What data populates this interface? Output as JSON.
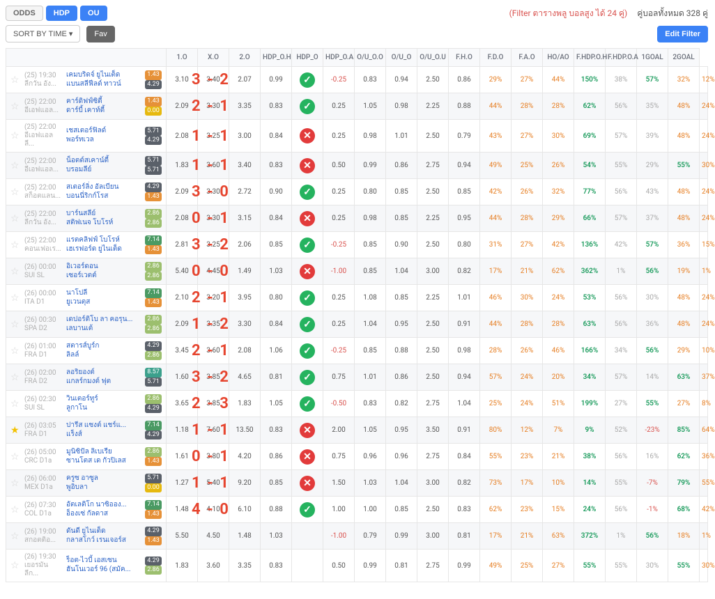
{
  "colors": {
    "blue": "#3b82f6",
    "gray": "#666",
    "badge_palette": {
      "blk": "#5a6069",
      "org": "#e69138",
      "yel": "#e6b90f",
      "grnL": "#9cbf6e",
      "grn": "#5fa05f",
      "grnD": "#4a9a63",
      "teal": "#3ba08c"
    }
  },
  "top": {
    "odds": "ODDS",
    "hdp": "HDP",
    "ou": "OU",
    "filter_red": "(Filter ตารางพลู บอลสูง ได้ 24 คู่)",
    "pairs_total": "คู่บอลทั้งหมด 328 คู่"
  },
  "bar2": {
    "sort": "SORT BY TIME ▾",
    "fav": "Fav",
    "edit": "Edit Filter"
  },
  "cols": [
    "1.O",
    "X.O",
    "2.O",
    "HDP_O.H",
    "HDP_O",
    "HDP_O.A",
    "O/U_O.O",
    "O/U_O",
    "O/U_O.U",
    "F.H.O",
    "F.D.O",
    "F.A.O",
    "HO/AO",
    "F.HDP.O.H",
    "F.HDP.O.A",
    "1GOAL",
    "2GOAL"
  ],
  "rows": [
    {
      "time": "(25) 19:30",
      "league": "ลีกวัน อัง...",
      "home": "เคมบริดจ์ ยูไนเต็ด",
      "away": "แบนสลีฟีลด์ ทาวน์",
      "bh": "1.43",
      "bhc": "org",
      "ba": "4.29",
      "bac": "blk",
      "score": "3 - 2",
      "v": [
        "3.10",
        "3.40",
        "2.07",
        "0.99",
        "✓",
        "-0.25",
        "0.83",
        "0.94",
        "2.50",
        "0.86",
        "29%",
        "27%",
        "44%",
        "150%",
        "38%",
        "57%",
        "32%",
        "12%"
      ]
    },
    {
      "time": "(25) 22:00",
      "league": "อีเอฟแอล...",
      "home": "คาร์ดิฟฟ์ซิตี้",
      "away": "ดาร์บี้ เคาท์ตี้",
      "bh": "1.43",
      "bhc": "org",
      "ba": "0.00",
      "bac": "yel",
      "score": "2 - 1",
      "v": [
        "2.09",
        "3.30",
        "3.35",
        "0.83",
        "✓",
        "0.25",
        "1.05",
        "0.98",
        "2.25",
        "0.88",
        "44%",
        "28%",
        "28%",
        "62%",
        "56%",
        "35%",
        "48%",
        "24%"
      ]
    },
    {
      "time": "(25) 22:00",
      "league": "อีเอฟแอลลี...",
      "home": "เชสเตอร์ฟิลด์",
      "away": "พอร์ทเวล",
      "bh": "5.71",
      "bhc": "blk",
      "ba": "4.29",
      "bac": "blk",
      "score": "1 - 1",
      "v": [
        "2.08",
        "3.25",
        "3.00",
        "0.84",
        "✗",
        "0.25",
        "0.98",
        "1.01",
        "2.50",
        "0.79",
        "43%",
        "27%",
        "30%",
        "69%",
        "57%",
        "39%",
        "48%",
        "24%"
      ]
    },
    {
      "time": "(25) 22:00",
      "league": "อีเอฟแอล...",
      "home": "น็อตต์สเคาน์ตี้",
      "away": "บรอมลีย์",
      "bh": "5.71",
      "bhc": "blk",
      "ba": "5.71",
      "bac": "blk",
      "score": "1 - 1",
      "v": [
        "1.83",
        "3.60",
        "3.40",
        "0.83",
        "✗",
        "0.50",
        "0.99",
        "0.86",
        "2.75",
        "0.94",
        "49%",
        "25%",
        "26%",
        "54%",
        "55%",
        "29%",
        "55%",
        "30%"
      ]
    },
    {
      "time": "(25) 22:00",
      "league": "สก็อตแลน...",
      "home": "สเตอร์ลิ่ง อัลเบียน",
      "away": "บอนนี่ริกก์โรส",
      "bh": "4.29",
      "bhc": "blk",
      "ba": "1.43",
      "bac": "org",
      "score": "3 - 0",
      "v": [
        "2.09",
        "3.30",
        "2.72",
        "0.90",
        "✓",
        "0.25",
        "0.80",
        "0.85",
        "2.50",
        "0.85",
        "42%",
        "26%",
        "32%",
        "77%",
        "56%",
        "43%",
        "48%",
        "24%"
      ]
    },
    {
      "time": "(25) 22:00",
      "league": "ลีกวัน อัง...",
      "home": "บาร์นสลีย์",
      "away": "สติฟเนจ โบโรห์",
      "bh": "2.86",
      "bhc": "grnL",
      "ba": "2.86",
      "bac": "grnL",
      "score": "0 - 1",
      "v": [
        "2.08",
        "3.30",
        "3.15",
        "0.84",
        "✗",
        "0.25",
        "0.98",
        "0.85",
        "2.25",
        "0.95",
        "44%",
        "28%",
        "29%",
        "66%",
        "57%",
        "37%",
        "48%",
        "24%"
      ]
    },
    {
      "time": "(25) 22:00",
      "league": "คอนเฟอเร...",
      "home": "แรตคลิฟฟ์ โบโรห์",
      "away": "เฮเรฟอร์ด ยูไนเต็ด",
      "bh": "7.14",
      "bhc": "grnD",
      "ba": "1.43",
      "bac": "org",
      "score": "3 - 2",
      "v": [
        "2.81",
        "3.25",
        "2.06",
        "0.85",
        "✓",
        "-0.25",
        "0.85",
        "0.90",
        "2.50",
        "0.80",
        "31%",
        "27%",
        "42%",
        "136%",
        "42%",
        "57%",
        "36%",
        "15%"
      ]
    },
    {
      "time": "(26) 00:00",
      "league": "SUI SL",
      "home": "อิเวอร์ดอน",
      "away": "เซอร์เวตต์",
      "bh": "2.86",
      "bhc": "grnL",
      "ba": "2.86",
      "bac": "grnL",
      "score": "0 - 0",
      "v": [
        "5.40",
        "4.45",
        "1.49",
        "1.03",
        "✗",
        "-1.00",
        "0.85",
        "1.04",
        "3.00",
        "0.82",
        "17%",
        "21%",
        "62%",
        "362%",
        "1%",
        "56%",
        "19%",
        "1%"
      ]
    },
    {
      "time": "(26) 00:00",
      "league": "ITA D1",
      "home": "นาโปลี",
      "away": "ยูเวนตุส",
      "bh": "7.14",
      "bhc": "grnD",
      "ba": "1.43",
      "bac": "org",
      "score": "2 - 1",
      "v": [
        "2.10",
        "3.20",
        "3.95",
        "0.80",
        "✓",
        "0.25",
        "1.08",
        "0.85",
        "2.25",
        "1.01",
        "46%",
        "30%",
        "24%",
        "53%",
        "56%",
        "30%",
        "48%",
        "24%"
      ]
    },
    {
      "time": "(26) 00:30",
      "league": "SPA D2",
      "home": "เดปอร์ติโบ ลา คอรุน...",
      "away": "เลบานเต้",
      "bh": "2.86",
      "bhc": "grnL",
      "ba": "2.86",
      "bac": "grnL",
      "score": "1 - 2",
      "v": [
        "2.09",
        "3.35",
        "3.30",
        "0.84",
        "✓",
        "0.25",
        "1.04",
        "0.95",
        "2.50",
        "0.91",
        "44%",
        "28%",
        "28%",
        "63%",
        "56%",
        "36%",
        "48%",
        "24%"
      ]
    },
    {
      "time": "(26) 01:00",
      "league": "FRA D1",
      "home": "สตารส์บูร์ก",
      "away": "ลิลล์",
      "bh": "4.29",
      "bhc": "blk",
      "ba": "2.86",
      "bac": "grnL",
      "score": "2 - 1",
      "v": [
        "3.45",
        "3.60",
        "2.08",
        "1.06",
        "✓",
        "-0.25",
        "0.85",
        "0.88",
        "2.50",
        "0.98",
        "28%",
        "26%",
        "46%",
        "166%",
        "34%",
        "56%",
        "29%",
        "10%"
      ]
    },
    {
      "time": "(26) 02:00",
      "league": "FRA D2",
      "home": "ลอริยองต์",
      "away": "แกลร์กมงต์ ฟุต",
      "bh": "8.57",
      "bhc": "teal",
      "ba": "5.71",
      "bac": "blk",
      "score": "3 - 2",
      "v": [
        "1.60",
        "3.85",
        "4.65",
        "0.81",
        "✓",
        "0.75",
        "1.01",
        "0.86",
        "2.50",
        "0.94",
        "57%",
        "24%",
        "20%",
        "34%",
        "57%",
        "14%",
        "63%",
        "37%"
      ]
    },
    {
      "time": "(26) 02:30",
      "league": "SUI SL",
      "home": "วินเตอร์ทูร์",
      "away": "ลูกาโน",
      "bh": "2.86",
      "bhc": "grnL",
      "ba": "4.29",
      "bac": "blk",
      "score": "2 - 3",
      "v": [
        "3.65",
        "3.85",
        "1.83",
        "1.05",
        "✓",
        "-0.50",
        "0.83",
        "0.82",
        "2.75",
        "1.04",
        "25%",
        "24%",
        "51%",
        "199%",
        "27%",
        "55%",
        "27%",
        "8%"
      ]
    },
    {
      "time": "(26) 03:05",
      "league": "FRA D1",
      "home": "ปารีส แซงต์ แชร์แ...",
      "away": "แร็งส์",
      "bh": "7.14",
      "bhc": "grnD",
      "ba": "4.29",
      "bac": "blk",
      "score": "1 - 1",
      "v": [
        "1.18",
        "7.60",
        "13.50",
        "0.83",
        "✗",
        "2.00",
        "1.05",
        "0.95",
        "3.50",
        "0.91",
        "80%",
        "12%",
        "7%",
        "9%",
        "52%",
        "-23%",
        "85%",
        "64%"
      ],
      "star": true
    },
    {
      "time": "(26) 05:00",
      "league": "CRC D1a",
      "home": "มูนิซิปัล ลิเบเรีย",
      "away": "ซานโตส เด กัวปิเลส",
      "bh": "2.86",
      "bhc": "grnL",
      "ba": "1.43",
      "bac": "org",
      "score": "0 - 1",
      "v": [
        "1.61",
        "3.80",
        "4.20",
        "0.86",
        "✗",
        "0.75",
        "0.96",
        "0.96",
        "2.75",
        "0.84",
        "55%",
        "23%",
        "21%",
        "38%",
        "56%",
        "16%",
        "62%",
        "36%"
      ]
    },
    {
      "time": "(26) 06:00",
      "league": "MEX D1a",
      "home": "ครูซ อาซูล",
      "away": "พูอิบลา",
      "bh": "5.71",
      "bhc": "blk",
      "ba": "0.00",
      "bac": "yel",
      "score": "1 - 1",
      "v": [
        "1.27",
        "5.40",
        "9.20",
        "0.85",
        "✗",
        "1.50",
        "1.03",
        "1.04",
        "3.00",
        "0.82",
        "73%",
        "17%",
        "10%",
        "14%",
        "55%",
        "-7%",
        "79%",
        "55%"
      ]
    },
    {
      "time": "(26) 07:30",
      "league": "COL D1a",
      "home": "อัตเลติโก นาซิออง...",
      "away": "อ็องเซ่ กัลดาส",
      "bh": "7.14",
      "bhc": "grnD",
      "ba": "1.43",
      "bac": "org",
      "score": "4 - 0",
      "v": [
        "1.48",
        "4.10",
        "6.10",
        "0.88",
        "✓",
        "1.00",
        "1.00",
        "0.85",
        "2.50",
        "0.83",
        "62%",
        "23%",
        "15%",
        "24%",
        "56%",
        "-1%",
        "68%",
        "42%"
      ]
    },
    {
      "time": "(26) 19:00",
      "league": "สกอตติอ...",
      "home": "ดันดี ยูไนเต็ด",
      "away": "กลาสโกว์ เรนเจอร์ส",
      "bh": "4.29",
      "bhc": "blk",
      "ba": "1.43",
      "bac": "org",
      "score": "",
      "v": [
        "5.50",
        "4.50",
        "1.48",
        "1.03",
        "",
        "-1.00",
        "0.79",
        "0.99",
        "3.00",
        "0.81",
        "17%",
        "21%",
        "63%",
        "372%",
        "1%",
        "56%",
        "18%",
        "1%"
      ]
    },
    {
      "time": "(26) 19:30",
      "league": "เยอรมันลีก...",
      "home": "ร็อต-ไวบี้ เอสเซน",
      "away": "ฮันโนเวอร์ 96 (สมัค...",
      "bh": "4.29",
      "bhc": "blk",
      "ba": "2.86",
      "bac": "grnL",
      "score": "",
      "v": [
        "1.83",
        "3.60",
        "3.35",
        "0.83",
        "",
        "0.50",
        "0.99",
        "0.81",
        "2.75",
        "0.99",
        "49%",
        "25%",
        "27%",
        "55%",
        "55%",
        "30%",
        "55%",
        "30%"
      ]
    }
  ]
}
